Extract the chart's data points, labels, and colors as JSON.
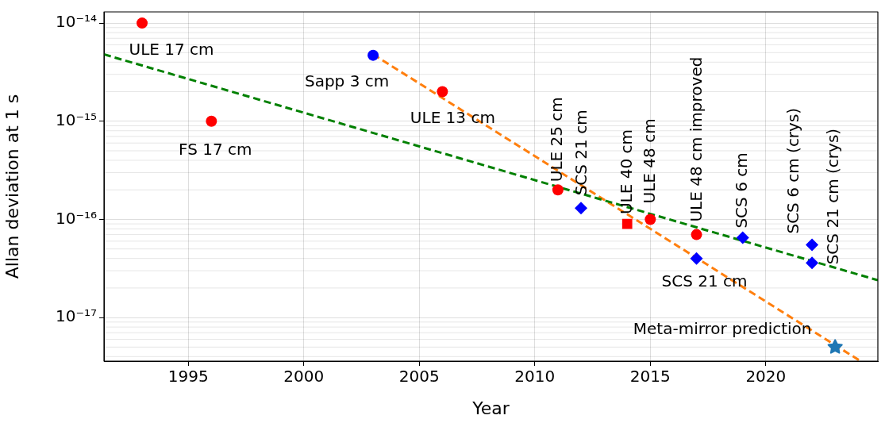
{
  "chart_data": {
    "type": "scatter",
    "xlabel": "Year",
    "ylabel": "Allan deviation at 1 s",
    "log": "y",
    "grid": true,
    "legend": false,
    "xlim": [
      1991.35,
      2024.85
    ],
    "xticks": [
      1995,
      2000,
      2005,
      2010,
      2015,
      2020
    ],
    "ylim": [
      3.6e-18,
      1.3e-14
    ],
    "yticks": [
      {
        "value": 1e-14,
        "label": "10⁻¹⁴"
      },
      {
        "value": 1e-15,
        "label": "10⁻¹⁵"
      },
      {
        "value": 1e-16,
        "label": "10⁻¹⁶"
      },
      {
        "value": 1e-17,
        "label": "10⁻¹⁷"
      }
    ],
    "series": [
      {
        "marker": "circle",
        "color": "#ff0000",
        "x": [
          1993,
          1996,
          2006,
          2011,
          2015,
          2017
        ],
        "values": [
          1e-14,
          1e-15,
          2e-15,
          2e-16,
          1e-16,
          7e-17
        ]
      },
      {
        "marker": "circle",
        "color": "#0000ff",
        "x": [
          2003
        ],
        "values": [
          4.7e-15
        ]
      },
      {
        "marker": "square",
        "color": "#ff0000",
        "x": [
          2014
        ],
        "values": [
          9e-17
        ]
      },
      {
        "marker": "diamond",
        "color": "#0000ff",
        "x": [
          2012,
          2017,
          2019
        ],
        "values": [
          1.3e-16,
          4e-17,
          6.5e-17
        ]
      },
      {
        "marker": "diamond",
        "color": "#0000ff",
        "x": [
          2022,
          2022
        ],
        "values": [
          5.5e-17,
          3.6e-17
        ]
      },
      {
        "marker": "star",
        "color": "#1f77b4",
        "x": [
          2023
        ],
        "values": [
          5e-18
        ]
      },
      {
        "type": "line",
        "marker": "none",
        "line_style": "dashed",
        "color": "#008000",
        "x": [
          1991.35,
          2024.85
        ],
        "values": [
          4.8e-15,
          2.4e-17
        ]
      },
      {
        "type": "line",
        "marker": "none",
        "line_style": "dashed",
        "color": "#ff7f0e",
        "x": [
          2003,
          2024.1
        ],
        "values": [
          4.8e-15,
          3.6e-18
        ]
      }
    ],
    "annotations": [
      {
        "text": "ULE 17 cm",
        "x": 1993,
        "y": 1e-14
      },
      {
        "text": "FS 17 cm",
        "x": 1996,
        "y": 1e-15
      },
      {
        "text": "Sapp 3 cm",
        "x": 2003,
        "y": 4.7e-15
      },
      {
        "text": "ULE 13 cm",
        "x": 2006,
        "y": 2e-15
      },
      {
        "text": "SCS 21 cm",
        "x": 2017,
        "y": 4e-17
      },
      {
        "text": "Meta-mirror prediction",
        "x": 2023,
        "y": 5e-18
      },
      {
        "text": "ULE 25 cm",
        "x": 2011,
        "y": 2e-16
      },
      {
        "text": "SCS 21 cm",
        "x": 2012,
        "y": 1.3e-16
      },
      {
        "text": "ULE 40 cm",
        "x": 2014,
        "y": 9e-17
      },
      {
        "text": "ULE 48 cm",
        "x": 2015,
        "y": 1e-16
      },
      {
        "text": "ULE 48 cm improved",
        "x": 2017,
        "y": 7e-17
      },
      {
        "text": "SCS 6 cm",
        "x": 2019,
        "y": 6.5e-17
      },
      {
        "text": "SCS 6 cm (crys)",
        "x": 2022,
        "y": 5.5e-17
      },
      {
        "text": "SCS 21 cm (crys)",
        "x": 2022,
        "y": 3.6e-17
      }
    ]
  }
}
